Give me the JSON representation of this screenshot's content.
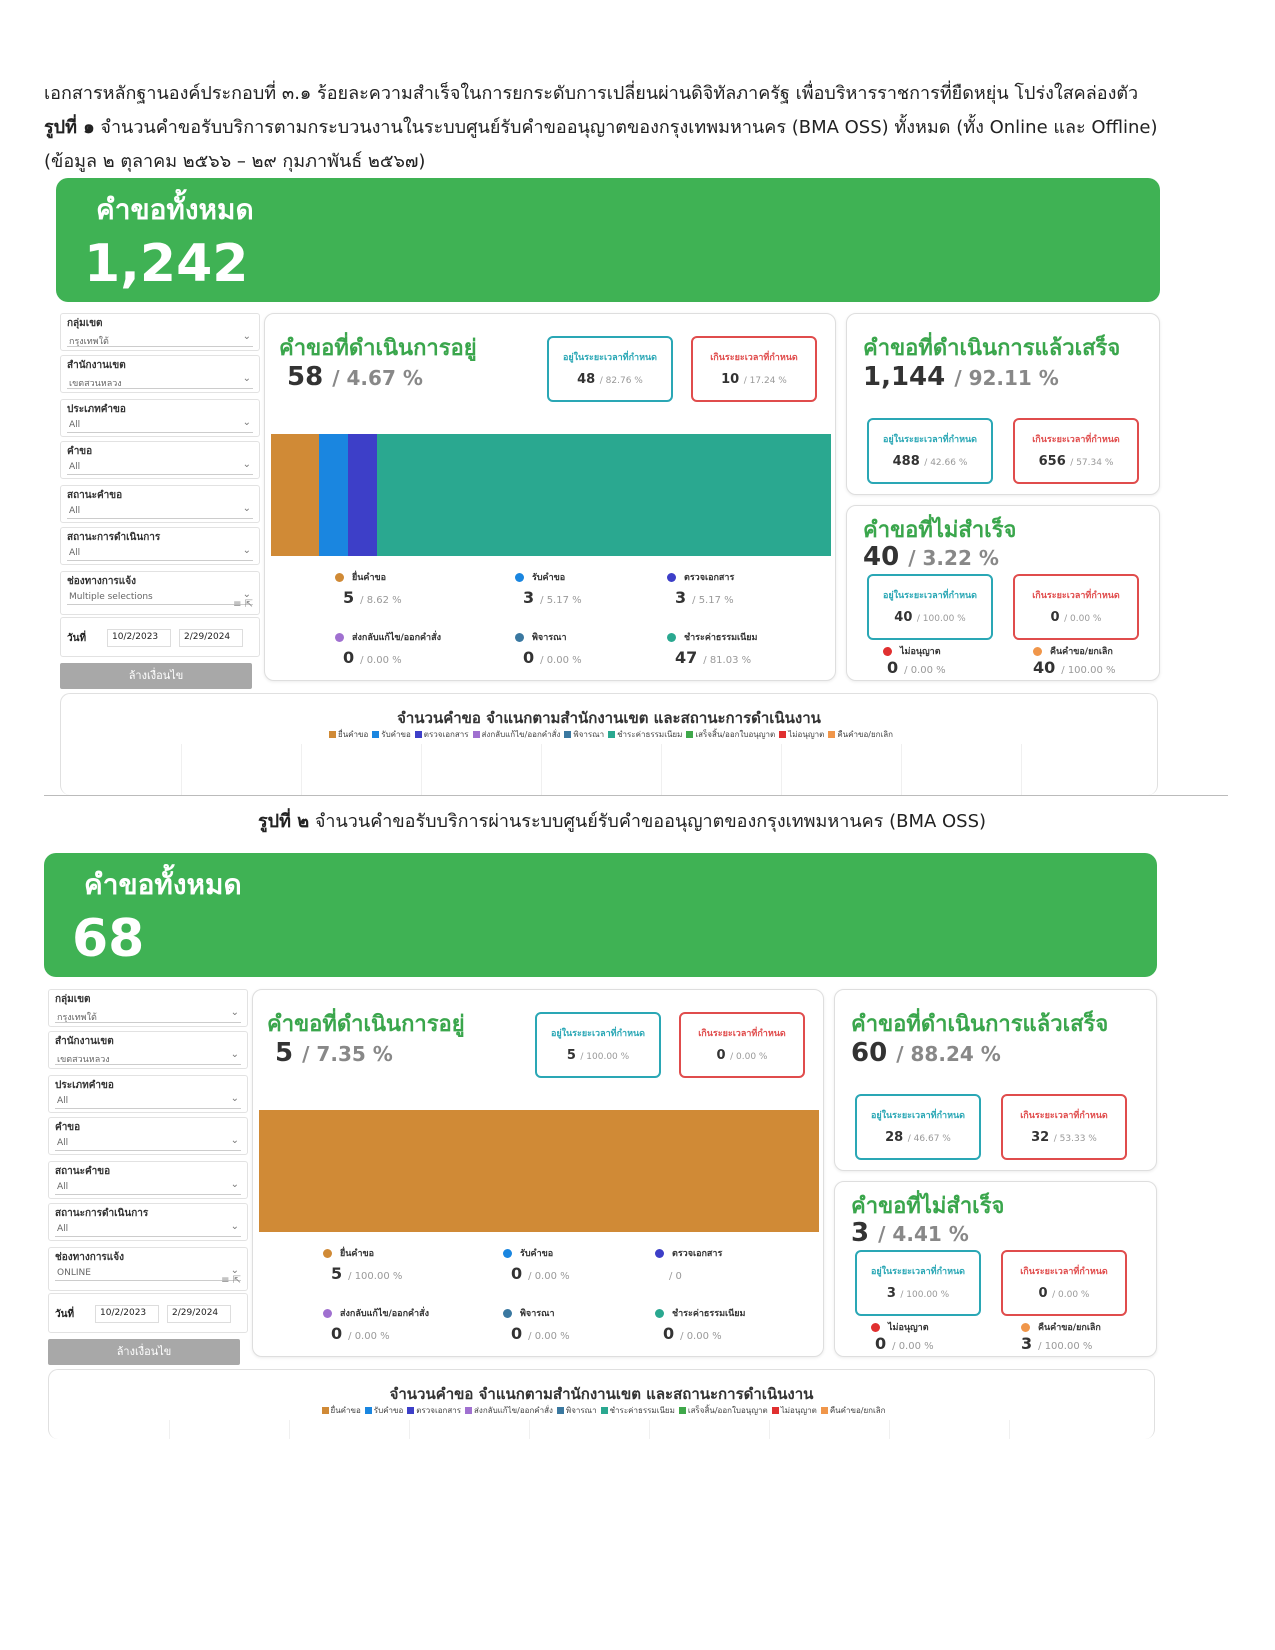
{
  "doc": {
    "line1": "เอกสารหลักฐานองค์ประกอบที่ ๓.๑ ร้อยละความสำเร็จในการยกระดับการเปลี่ยนผ่านดิจิทัลภาครัฐ เพื่อบริหารราชการที่ยืดหยุ่น โปร่งใสคล่องตัว",
    "fig1_label": "รูปที่ ๑",
    "fig1_text": "จำนวนคำขอรับบริการตามกระบวนงานในระบบศูนย์รับคำขออนุญาตของกรุงเทพมหานคร (BMA OSS) ทั้งหมด (ทั้ง Online และ Offline)",
    "line3": "(ข้อมูล ๒ ตุลาคม ๒๕๖๖ – ๒๙ กุมภาพันธ์ ๒๕๖๗)",
    "fig2_label": "รูปที่ ๒",
    "fig2_text": "จำนวนคำขอรับบริการผ่านระบบศูนย์รับคำขออนุญาตของกรุงเทพมหานคร (BMA OSS)"
  },
  "labels": {
    "total_title": "คำขอทั้งหมด",
    "in_progress": "คำขอที่ดำเนินการอยู่",
    "completed": "คำขอที่ดำเนินการแล้วเสร็จ",
    "failed": "คำขอที่ไม่สำเร็จ",
    "within": "อยู่ในระยะเวลาที่กำหนด",
    "over": "เกินระยะเวลาที่กำหนด",
    "not_approved": "ไม่อนุญาต",
    "returned": "คืนคำขอ/ยกเลิก",
    "chart_title": "จำนวนคำขอ  จำแนกตามสำนักงานเขต และสถานะการดำเนินงาน",
    "clear": "ล้างเงื่อนไข",
    "date_label": "วันที่"
  },
  "stage_names": [
    "ยื่นคำขอ",
    "รับคำขอ",
    "ตรวจเอกสาร",
    "ส่งกลับแก้ไข/ออกคำสั่ง",
    "พิจารณา",
    "ชำระค่าธรรมเนียม"
  ],
  "legend_bottom": [
    "ยื่นคำขอ",
    "รับคำขอ",
    "ตรวจเอกสาร",
    "ส่งกลับแก้ไข/ออกคำสั่ง",
    "พิจารณา",
    "ชำระค่าธรรมเนียม",
    "เสร็จสิ้น/ออกใบอนุญาต",
    "ไม่อนุญาต",
    "คืนคำขอ/ยกเลิก"
  ],
  "colors": {
    "green": "#3fb254",
    "stages": [
      "#d08a36",
      "#1a86e0",
      "#3d3fc8",
      "#a070d0",
      "#3a78a0",
      "#2aa890"
    ],
    "bottom": [
      "#d08a36",
      "#1a86e0",
      "#3d3fc8",
      "#a070d0",
      "#3a78a0",
      "#2aa890",
      "#3fa84a",
      "#e03030",
      "#f0964a"
    ],
    "not_approved": "#e03030",
    "returned": "#f0964a"
  },
  "dashboards": [
    {
      "total": "1,242",
      "filters": [
        {
          "label": "กลุ่มเขต",
          "value": "กรุงเทพใต้"
        },
        {
          "label": "สำนักงานเขต",
          "value": "เขตสวนหลวง"
        },
        {
          "label": "ประเภทคำขอ",
          "value": "All"
        },
        {
          "label": "คำขอ",
          "value": "All"
        },
        {
          "label": "สถานะคำขอ",
          "value": "All"
        },
        {
          "label": "สถานะการดำเนินการ",
          "value": "All"
        },
        {
          "label": "ช่องทางการแจ้ง",
          "value": "Multiple selections"
        }
      ],
      "date_from": "10/2/2023",
      "date_to": "2/29/2024",
      "in_progress": {
        "count": "58",
        "pct": "/ 4.67 %",
        "within": "48",
        "within_pct": "/ 82.76 %",
        "over": "10",
        "over_pct": "/ 17.24 %"
      },
      "stages": [
        {
          "count": "5",
          "pct": "/ 8.62 %",
          "value": 5
        },
        {
          "count": "3",
          "pct": "/ 5.17 %",
          "value": 3
        },
        {
          "count": "3",
          "pct": "/ 5.17 %",
          "value": 3
        },
        {
          "count": "0",
          "pct": "/ 0.00 %",
          "value": 0
        },
        {
          "count": "0",
          "pct": "/ 0.00 %",
          "value": 0
        },
        {
          "count": "47",
          "pct": "/ 81.03 %",
          "value": 47
        }
      ],
      "completed": {
        "count": "1,144",
        "pct": "/ 92.11 %",
        "within": "488",
        "within_pct": "/ 42.66 %",
        "over": "656",
        "over_pct": "/ 57.34 %"
      },
      "failed": {
        "count": "40",
        "pct": "/ 3.22 %",
        "within": "40",
        "within_pct": "/ 100.00 %",
        "over": "0",
        "over_pct": "/ 0.00 %",
        "not_approved": "0",
        "not_approved_pct": "/ 0.00 %",
        "returned": "40",
        "returned_pct": "/ 100.00 %"
      }
    },
    {
      "total": "68",
      "filters": [
        {
          "label": "กลุ่มเขต",
          "value": "กรุงเทพใต้"
        },
        {
          "label": "สำนักงานเขต",
          "value": "เขตสวนหลวง"
        },
        {
          "label": "ประเภทคำขอ",
          "value": "All"
        },
        {
          "label": "คำขอ",
          "value": "All"
        },
        {
          "label": "สถานะคำขอ",
          "value": "All"
        },
        {
          "label": "สถานะการดำเนินการ",
          "value": "All"
        },
        {
          "label": "ช่องทางการแจ้ง",
          "value": "ONLINE"
        }
      ],
      "date_from": "10/2/2023",
      "date_to": "2/29/2024",
      "in_progress": {
        "count": "5",
        "pct": "/ 7.35 %",
        "within": "5",
        "within_pct": "/ 100.00 %",
        "over": "0",
        "over_pct": "/ 0.00 %"
      },
      "stages": [
        {
          "count": "5",
          "pct": "/ 100.00 %",
          "value": 5
        },
        {
          "count": "0",
          "pct": "/ 0.00 %",
          "value": 0
        },
        {
          "count": "",
          "pct": "/ 0",
          "value": 0
        },
        {
          "count": "0",
          "pct": "/ 0.00 %",
          "value": 0
        },
        {
          "count": "0",
          "pct": "/ 0.00 %",
          "value": 0
        },
        {
          "count": "0",
          "pct": "/ 0.00 %",
          "value": 0
        }
      ],
      "completed": {
        "count": "60",
        "pct": "/ 88.24 %",
        "within": "28",
        "within_pct": "/ 46.67 %",
        "over": "32",
        "over_pct": "/ 53.33 %"
      },
      "failed": {
        "count": "3",
        "pct": "/ 4.41 %",
        "within": "3",
        "within_pct": "/ 100.00 %",
        "over": "0",
        "over_pct": "/ 0.00 %",
        "not_approved": "0",
        "not_approved_pct": "/ 0.00 %",
        "returned": "3",
        "returned_pct": "/ 100.00 %"
      }
    }
  ]
}
